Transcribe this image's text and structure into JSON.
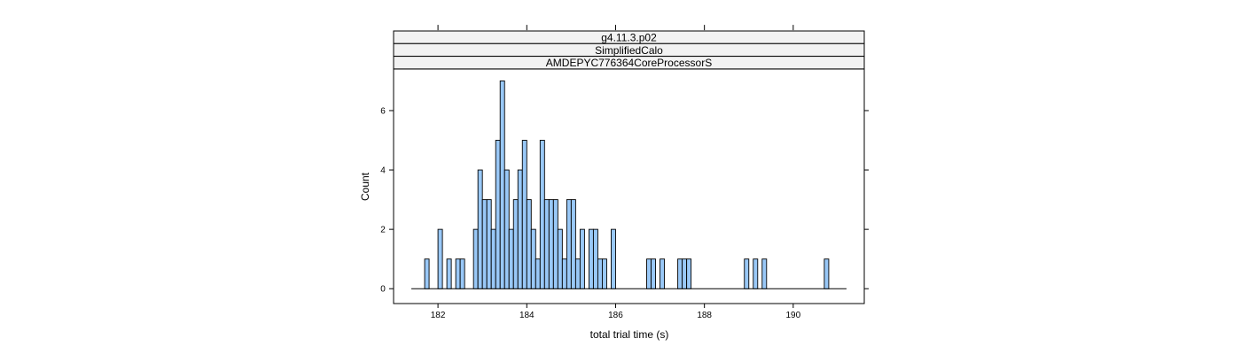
{
  "chart_data": {
    "type": "bar",
    "strips": [
      "g4.11.3.p02",
      "SimplifiedCalo",
      "AMDEPYC776364CoreProcessorS"
    ],
    "xlabel": "total trial time (s)",
    "ylabel": "Count",
    "xlim": [
      181.0,
      191.6
    ],
    "ylim": [
      -0.5,
      7.4
    ],
    "xticks": [
      182,
      184,
      186,
      188,
      190
    ],
    "yticks": [
      0,
      2,
      4,
      6
    ],
    "bin_start": 181.4,
    "bin_width": 0.1,
    "counts": [
      0,
      0,
      0,
      1,
      0,
      0,
      2,
      0,
      1,
      0,
      1,
      1,
      0,
      0,
      2,
      4,
      3,
      3,
      2,
      5,
      7,
      4,
      2,
      3,
      4,
      5,
      3,
      2,
      1,
      5,
      3,
      3,
      3,
      2,
      1,
      3,
      3,
      1,
      2,
      0,
      2,
      2,
      1,
      1,
      0,
      2,
      0,
      0,
      0,
      0,
      0,
      0,
      0,
      1,
      1,
      0,
      1,
      0,
      0,
      0,
      1,
      1,
      1,
      0,
      0,
      0,
      0,
      0,
      0,
      0,
      0,
      0,
      0,
      0,
      0,
      1,
      0,
      1,
      0,
      1,
      0,
      0,
      0,
      0,
      0,
      0,
      0,
      0,
      0,
      0,
      0,
      0,
      0,
      1,
      0,
      0,
      0,
      0
    ]
  },
  "colors": {
    "bar_fill": "#99c8f7",
    "bar_stroke": "#000000",
    "strip_fill": "#f2f2f2"
  }
}
